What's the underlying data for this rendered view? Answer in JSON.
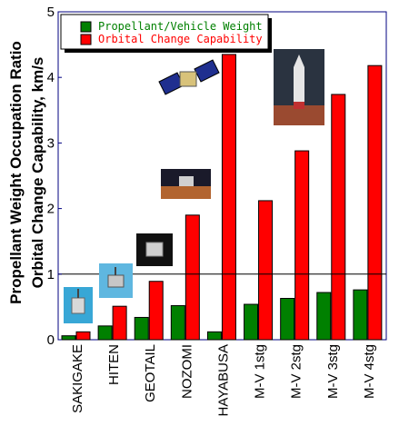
{
  "chart_data": {
    "type": "bar",
    "ylabel_lines": [
      "Propellant Weight Occupation Ratio",
      "Orbital Change Capability, km/s"
    ],
    "ylim": [
      0,
      5
    ],
    "yticks": [
      "0",
      "1",
      "2",
      "3",
      "4",
      "5"
    ],
    "reference_line": 1,
    "legend_placement": "top-left",
    "grid": false,
    "categories": [
      "SAKIGAKE",
      "HITEN",
      "GEOTAIL",
      "NOZOMI",
      "HAYABUSA",
      "M-V 1stg",
      "M-V 2stg",
      "M-V 3stg",
      "M-V 4stg"
    ],
    "series": [
      {
        "name": "Propellant/Vehicle Weight",
        "color": "#008000",
        "values": [
          0.06,
          0.21,
          0.34,
          0.52,
          0.12,
          0.54,
          0.63,
          0.72,
          0.76
        ]
      },
      {
        "name": "Orbital Change Capability",
        "color": "#ff0000",
        "values": [
          0.12,
          0.51,
          0.89,
          1.9,
          4.35,
          2.12,
          2.88,
          3.74,
          4.18
        ]
      }
    ],
    "colors": {
      "axis": "#000080",
      "legend_bg": "#ffffff",
      "legend_shadow": "#000000"
    }
  }
}
